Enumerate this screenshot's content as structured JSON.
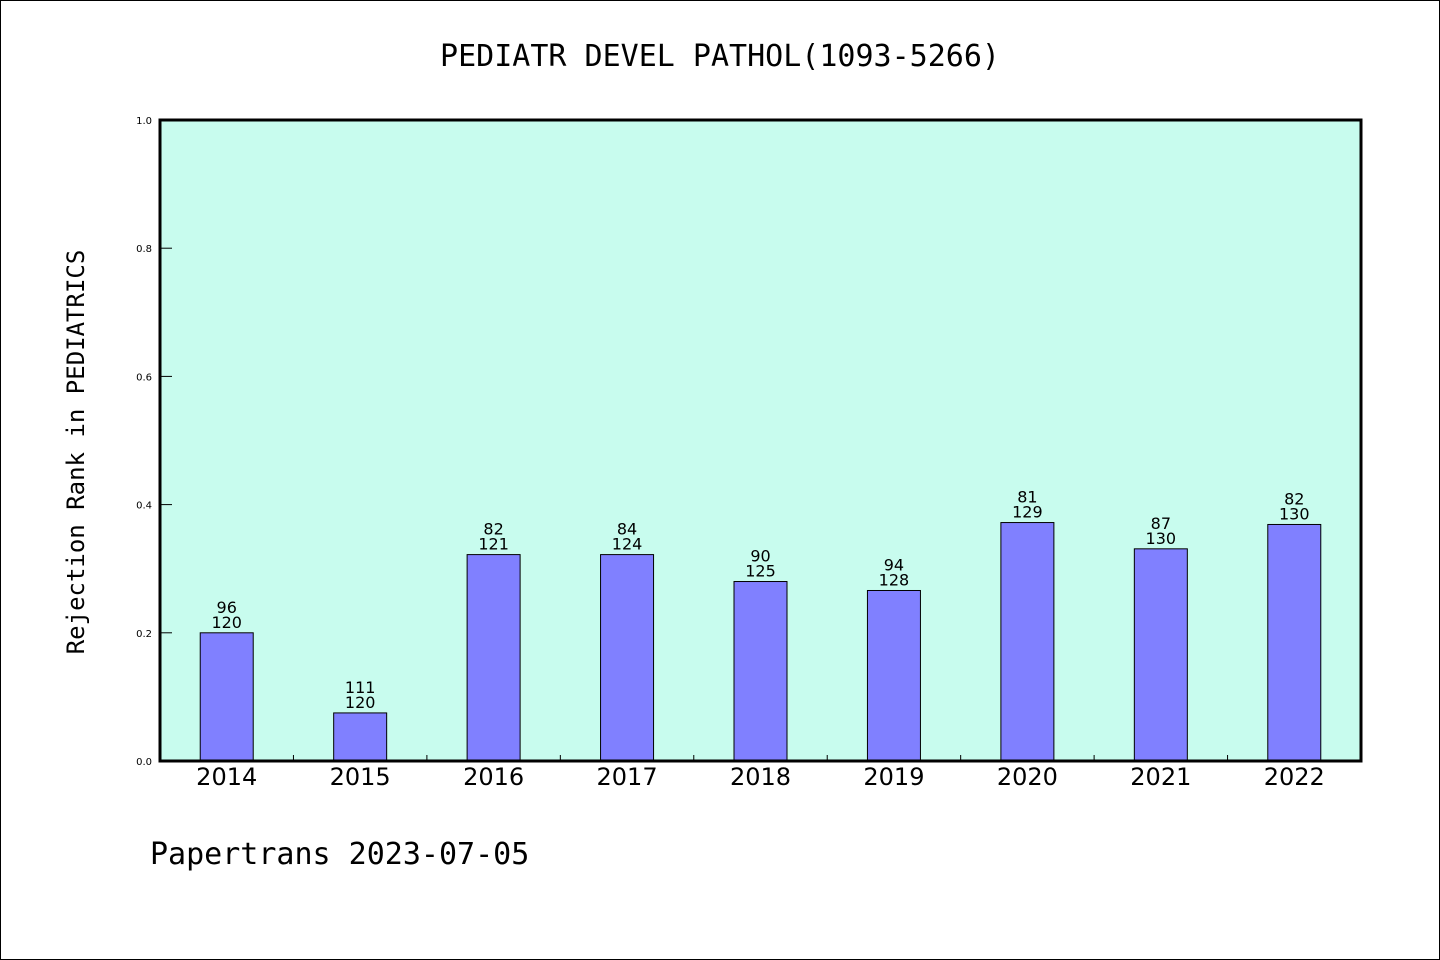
{
  "footer": "Papertrans 2023-07-05",
  "chart_data": {
    "type": "bar",
    "title": "PEDIATR DEVEL PATHOL(1093-5266)",
    "xlabel": "",
    "ylabel": "Rejection Rank in PEDIATRICS",
    "ylim": [
      0,
      1.0
    ],
    "yticks": [
      "0.0",
      "0.2",
      "0.4",
      "0.6",
      "0.8",
      "1.0"
    ],
    "categories": [
      "2014",
      "2015",
      "2016",
      "2017",
      "2018",
      "2019",
      "2020",
      "2021",
      "2022"
    ],
    "values": [
      0.2,
      0.075,
      0.322,
      0.322,
      0.28,
      0.266,
      0.372,
      0.331,
      0.369
    ],
    "label_top": [
      "96",
      "111",
      "82",
      "84",
      "90",
      "94",
      "81",
      "87",
      "82"
    ],
    "label_bottom": [
      "120",
      "120",
      "121",
      "124",
      "125",
      "128",
      "129",
      "130",
      "130"
    ],
    "grid": false,
    "colors": {
      "plot_bg": "#c8fcee",
      "bar": "#8080ff",
      "bar_edge": "#000000"
    }
  }
}
